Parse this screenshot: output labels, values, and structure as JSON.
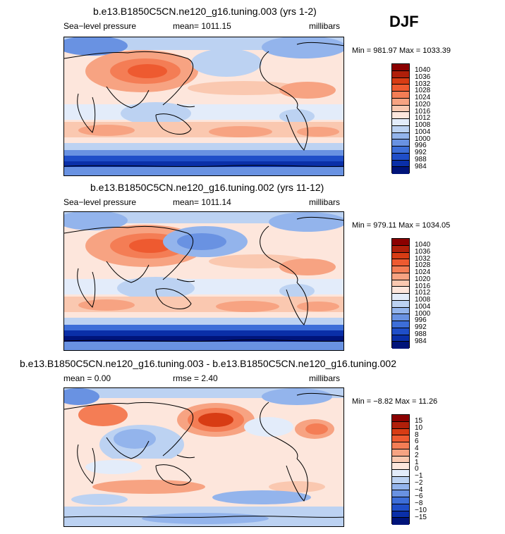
{
  "season": "DJF",
  "units_label": "millibars",
  "panels": [
    {
      "title": "b.e13.B1850C5CN.ne120_g16.tuning.003 (yrs 1-2)",
      "variable": "Sea−level pressure",
      "mean_text": "mean= 1011.15",
      "minmax": "Min = 981.97 Max = 1033.39",
      "colorbar_labels": [
        "1040",
        "1036",
        "1032",
        "1028",
        "1024",
        "1020",
        "1016",
        "1012",
        "1008",
        "1004",
        "1000",
        "996",
        "992",
        "988",
        "984"
      ]
    },
    {
      "title": "b.e13.B1850C5CN.ne120_g16.tuning.002 (yrs 11-12)",
      "variable": "Sea−level pressure",
      "mean_text": "mean= 1011.14",
      "minmax": "Min = 979.11 Max = 1034.05",
      "colorbar_labels": [
        "1040",
        "1036",
        "1032",
        "1028",
        "1024",
        "1020",
        "1016",
        "1012",
        "1008",
        "1004",
        "1000",
        "996",
        "992",
        "988",
        "984"
      ]
    },
    {
      "title": "b.e13.B1850C5CN.ne120_g16.tuning.003 - b.e13.B1850C5CN.ne120_g16.tuning.002",
      "mean_text": "mean =    0.00",
      "rmse_text": "rmse =    2.40",
      "minmax": "Min =  −8.82 Max =   11.26",
      "colorbar_labels": [
        "15",
        "10",
        "8",
        "6",
        "4",
        "2",
        "1",
        "0",
        "−1",
        "−2",
        "−4",
        "−6",
        "−8",
        "−10",
        "−15"
      ]
    }
  ],
  "colors": {
    "abs_scale": [
      "#8b0000",
      "#b01f0a",
      "#d83c14",
      "#ee5a30",
      "#f47d55",
      "#f7a382",
      "#fac8b0",
      "#fde6dc",
      "#e3ecfa",
      "#bcd2f2",
      "#93b4ec",
      "#6992e2",
      "#3d6ed8",
      "#1f4ec8",
      "#0a2fa8",
      "#00147a"
    ],
    "diff_scale": [
      "#8b0000",
      "#b01f0a",
      "#d83c14",
      "#ee5a30",
      "#f47d55",
      "#f7a382",
      "#fac8b0",
      "#fde6dc",
      "#e3ecfa",
      "#bcd2f2",
      "#93b4ec",
      "#6992e2",
      "#3d6ed8",
      "#1f4ec8",
      "#0a2fa8",
      "#00147a"
    ]
  }
}
